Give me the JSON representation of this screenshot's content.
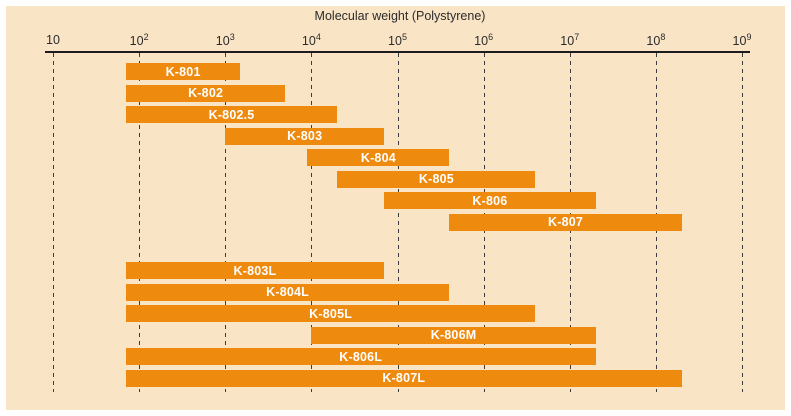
{
  "chart": {
    "title": "Molecular weight (Polystyrene)",
    "colors": {
      "panel_background": "#fae4c6",
      "bar": "#ee8a0e",
      "bar_label": "#ffffff",
      "axis": "#1c1c1c",
      "gridline": "#3c3c3c",
      "text": "#2b2b2b"
    },
    "ticks": [
      {
        "base": "10",
        "sup": ""
      },
      {
        "base": "10",
        "sup": "2"
      },
      {
        "base": "10",
        "sup": "3"
      },
      {
        "base": "10",
        "sup": "4"
      },
      {
        "base": "10",
        "sup": "5"
      },
      {
        "base": "10",
        "sup": "6"
      },
      {
        "base": "10",
        "sup": "7"
      },
      {
        "base": "10",
        "sup": "8"
      },
      {
        "base": "10",
        "sup": "9"
      }
    ]
  },
  "chart_data": {
    "type": "bar",
    "subtype": "horizontal-range-bars",
    "title": "Molecular weight (Polystyrene)",
    "xlabel": "Molecular weight (Polystyrene)",
    "x_scale": "log",
    "xlim": [
      10,
      1000000000
    ],
    "x_ticks": [
      10,
      100,
      1000,
      10000,
      100000,
      1000000,
      10000000,
      100000000,
      1000000000
    ],
    "grid": "vertical-dashed",
    "legend": "none",
    "series": [
      {
        "name": "K-801",
        "group": 1,
        "range": [
          70,
          1500
        ]
      },
      {
        "name": "K-802",
        "group": 1,
        "range": [
          70,
          5000
        ]
      },
      {
        "name": "K-802.5",
        "group": 1,
        "range": [
          70,
          20000
        ]
      },
      {
        "name": "K-803",
        "group": 1,
        "range": [
          1000,
          70000
        ]
      },
      {
        "name": "K-804",
        "group": 1,
        "range": [
          9000,
          400000
        ]
      },
      {
        "name": "K-805",
        "group": 1,
        "range": [
          20000,
          4000000
        ]
      },
      {
        "name": "K-806",
        "group": 1,
        "range": [
          70000,
          20000000
        ]
      },
      {
        "name": "K-807",
        "group": 1,
        "range": [
          400000,
          200000000
        ]
      },
      {
        "name": "K-803L",
        "group": 2,
        "range": [
          70,
          70000
        ]
      },
      {
        "name": "K-804L",
        "group": 2,
        "range": [
          70,
          400000
        ]
      },
      {
        "name": "K-805L",
        "group": 2,
        "range": [
          70,
          4000000
        ]
      },
      {
        "name": "K-806M",
        "group": 2,
        "range": [
          10000,
          20000000
        ]
      },
      {
        "name": "K-806L",
        "group": 2,
        "range": [
          70,
          20000000
        ]
      },
      {
        "name": "K-807L",
        "group": 2,
        "range": [
          70,
          200000000
        ]
      }
    ]
  }
}
